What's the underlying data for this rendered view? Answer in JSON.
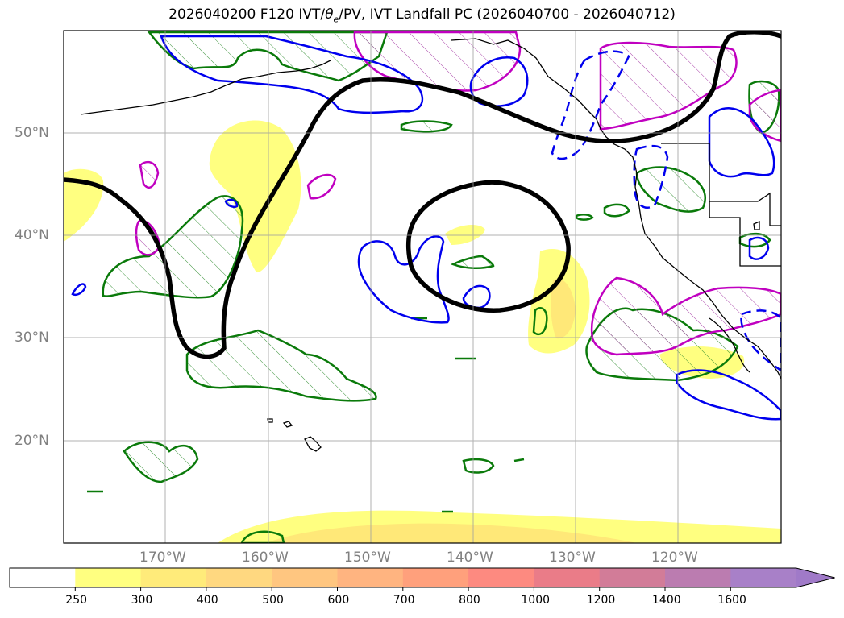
{
  "title": "2026040200 F120 IVT/θe/PV, IVT Landfall PC (2026040700 - 2026040712)",
  "title_parts": {
    "prefix": "2026040200 F120 IVT/",
    "theta": "θ",
    "theta_sub": "e",
    "suffix": "/PV, IVT Landfall PC (2026040700 - 2026040712)"
  },
  "map": {
    "lat_labels": [
      "50°N",
      "40°N",
      "30°N",
      "20°N"
    ],
    "lon_labels": [
      "170°W",
      "160°W",
      "150°W",
      "140°W",
      "130°W",
      "120°W"
    ]
  },
  "colorbar": {
    "tick_labels": [
      "250",
      "300",
      "400",
      "500",
      "600",
      "700",
      "800",
      "1000",
      "1200",
      "1400",
      "1600"
    ],
    "colors": [
      "#ffff80",
      "#ffeb7a",
      "#ffd880",
      "#ffc680",
      "#ffb480",
      "#ffa07c",
      "#fd8a80",
      "#ea7c88",
      "#d27c98",
      "#bb7cb0",
      "#a880c8"
    ],
    "extend": "max"
  },
  "legend_colors": {
    "pv_hatch": "#2b8a2b",
    "pv_contour": "#0a7a0a",
    "magenta_contour": "#c000c0",
    "blue_contour": "#0000ee",
    "theta_contour": "#000000",
    "ivt_fill": "#ffff80"
  }
}
